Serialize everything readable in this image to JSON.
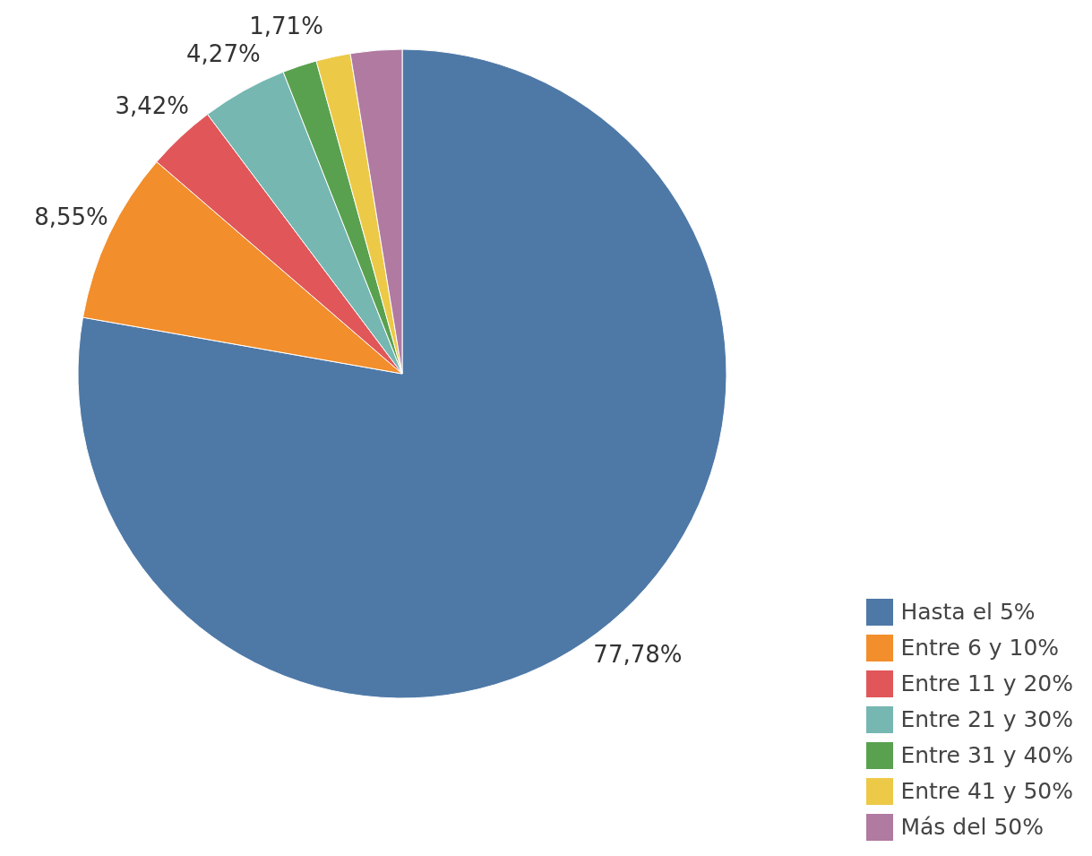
{
  "chart_data": {
    "type": "pie",
    "categories": [
      "Hasta el 5%",
      "Entre 6 y 10%",
      "Entre 11 y 20%",
      "Entre 21 y 30%",
      "Entre 31 y 40%",
      "Entre 41 y 50%",
      "Más del 50%"
    ],
    "values": [
      77.78,
      8.55,
      3.42,
      4.27,
      1.71,
      1.71,
      2.56
    ],
    "colors": [
      "#4e79a7",
      "#f28e2b",
      "#e15759",
      "#76b7b2",
      "#59a14f",
      "#edc948",
      "#b07aa1"
    ],
    "value_labels": [
      "77,78%",
      "8,55%",
      "3,42%",
      "4,27%",
      "1,71%",
      null,
      null
    ],
    "legend": "bottom right"
  }
}
